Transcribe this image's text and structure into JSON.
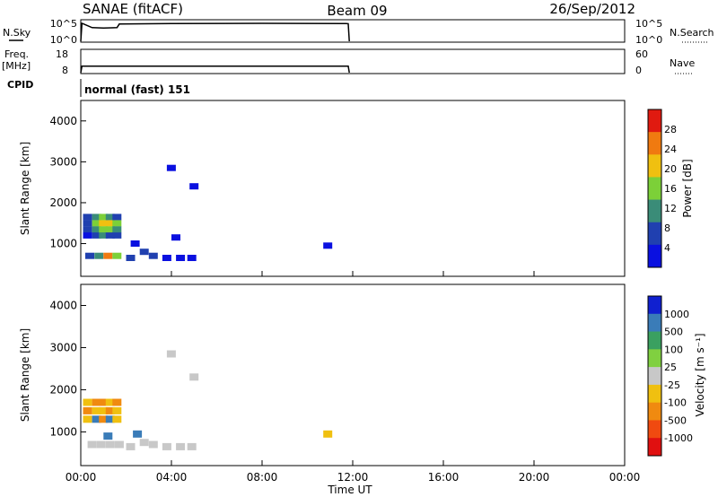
{
  "header": {
    "title": "SANAE (fitACF)",
    "beam": "Beam 09",
    "date": "26/Sep/2012"
  },
  "labels": {
    "nsky": "N.Sky",
    "freq": "Freq.",
    "mhz": "[MHz]",
    "cpid": "CPID",
    "nsearch": "N.Search",
    "nave": "Nave",
    "cpid_value": "normal (fast) 151",
    "xlabel": "Time UT",
    "slant_range": "Slant Range [km]"
  },
  "nsky_panel": {
    "left_ticks": [
      "10^5",
      "10^0"
    ],
    "right_ticks": [
      "10^5",
      "10^0"
    ]
  },
  "freq_panel": {
    "left_ticks": [
      "18",
      "8"
    ],
    "right_ticks": [
      "60",
      "0"
    ]
  },
  "x_ticks": [
    "00:00",
    "04:00",
    "08:00",
    "12:00",
    "16:00",
    "20:00",
    "00:00"
  ],
  "range_ticks": [
    "1000",
    "2000",
    "3000",
    "4000"
  ],
  "power_colorbar": {
    "label": "Power [dB]",
    "ticks": [
      "4",
      "8",
      "12",
      "16",
      "20",
      "24",
      "28"
    ],
    "colors": [
      "#0a10e0",
      "#2040b0",
      "#3a8c78",
      "#7cd038",
      "#f0c010",
      "#f07a10",
      "#e01a10"
    ]
  },
  "velocity_colorbar": {
    "label": "Velocity [m s⁻¹]",
    "ticks": [
      "1000",
      "500",
      "100",
      "25",
      "-25",
      "-100",
      "-500",
      "-1000"
    ],
    "colors": [
      "#1020d0",
      "#3a7cb8",
      "#3aa060",
      "#80d040",
      "#c8c8c8",
      "#f0c010",
      "#f08a10",
      "#f04a10",
      "#e01010"
    ]
  },
  "chart_data": [
    {
      "type": "line",
      "panel": "N.Sky / N.Search",
      "x_unit": "hours UT",
      "xlim": [
        0,
        24
      ],
      "series": [
        {
          "x": [
            0,
            0.05,
            0.1,
            0.5,
            1.0,
            1.6,
            1.7,
            4.0,
            8.0,
            11.7,
            11.8,
            11.85
          ],
          "values": [
            0,
            5,
            4.9,
            3.8,
            3.7,
            3.8,
            4.8,
            4.95,
            5,
            4.95,
            4.9,
            0
          ]
        }
      ]
    },
    {
      "type": "line",
      "panel": "Freq. / Nave",
      "x_unit": "hours UT",
      "xlim": [
        0,
        24
      ],
      "series": [
        {
          "x": [
            0,
            0.05,
            2,
            6,
            10,
            11.8,
            11.85
          ],
          "values": [
            8,
            11,
            11,
            11,
            11,
            11,
            8
          ]
        }
      ]
    },
    {
      "type": "heatmap",
      "panel": "Power",
      "xlabel": "Time UT",
      "ylabel": "Slant Range [km]",
      "xlim": [
        0,
        24
      ],
      "ylim": [
        200,
        4500
      ],
      "clim_dB": [
        0,
        32
      ],
      "cells": [
        [
          0.1,
          1200,
          4
        ],
        [
          0.1,
          1350,
          6
        ],
        [
          0.1,
          1500,
          8
        ],
        [
          0.1,
          1650,
          6
        ],
        [
          0.5,
          1200,
          8
        ],
        [
          0.5,
          1350,
          12
        ],
        [
          0.5,
          1500,
          16
        ],
        [
          0.5,
          1650,
          10
        ],
        [
          0.8,
          1200,
          10
        ],
        [
          0.8,
          1350,
          16
        ],
        [
          0.8,
          1500,
          22
        ],
        [
          0.8,
          1650,
          14
        ],
        [
          1.1,
          1200,
          8
        ],
        [
          1.1,
          1350,
          14
        ],
        [
          1.1,
          1500,
          20
        ],
        [
          1.1,
          1650,
          12
        ],
        [
          1.4,
          1200,
          6
        ],
        [
          1.4,
          1350,
          10
        ],
        [
          1.4,
          1500,
          14
        ],
        [
          1.4,
          1650,
          8
        ],
        [
          0.2,
          700,
          6
        ],
        [
          0.6,
          700,
          12
        ],
        [
          1.0,
          700,
          24
        ],
        [
          1.4,
          700,
          16
        ],
        [
          2.0,
          650,
          6
        ],
        [
          2.6,
          800,
          8
        ],
        [
          3.0,
          700,
          6
        ],
        [
          3.6,
          650,
          4
        ],
        [
          4.2,
          650,
          4
        ],
        [
          4.7,
          650,
          4
        ],
        [
          2.2,
          1000,
          4
        ],
        [
          4.0,
          1150,
          4
        ],
        [
          10.7,
          950,
          4
        ],
        [
          3.8,
          2850,
          4
        ],
        [
          4.8,
          2400,
          4
        ]
      ]
    },
    {
      "type": "heatmap",
      "panel": "Velocity",
      "xlabel": "Time UT",
      "ylabel": "Slant Range [km]",
      "xlim": [
        0,
        24
      ],
      "ylim": [
        200,
        4500
      ],
      "clim_m_s": [
        -1000,
        1000
      ],
      "cells": [
        [
          0.1,
          1300,
          -100
        ],
        [
          0.1,
          1500,
          -500
        ],
        [
          0.1,
          1700,
          -100
        ],
        [
          0.5,
          1300,
          100
        ],
        [
          0.5,
          1500,
          -100
        ],
        [
          0.5,
          1700,
          -500
        ],
        [
          0.8,
          1300,
          -500
        ],
        [
          0.8,
          1500,
          -100
        ],
        [
          0.8,
          1700,
          -500
        ],
        [
          1.1,
          1300,
          100
        ],
        [
          1.1,
          1500,
          -500
        ],
        [
          1.1,
          1700,
          -100
        ],
        [
          1.4,
          1300,
          -100
        ],
        [
          1.4,
          1500,
          -100
        ],
        [
          1.4,
          1700,
          -500
        ],
        [
          0.3,
          700,
          0
        ],
        [
          0.7,
          700,
          0
        ],
        [
          1.1,
          700,
          0
        ],
        [
          1.5,
          700,
          0
        ],
        [
          2.0,
          650,
          0
        ],
        [
          2.6,
          750,
          0
        ],
        [
          3.0,
          700,
          0
        ],
        [
          3.6,
          650,
          0
        ],
        [
          4.2,
          650,
          0
        ],
        [
          4.7,
          650,
          0
        ],
        [
          1.0,
          900,
          100
        ],
        [
          2.3,
          950,
          100
        ],
        [
          3.8,
          2850,
          0
        ],
        [
          4.8,
          2300,
          0
        ],
        [
          10.7,
          950,
          -100
        ]
      ]
    }
  ]
}
